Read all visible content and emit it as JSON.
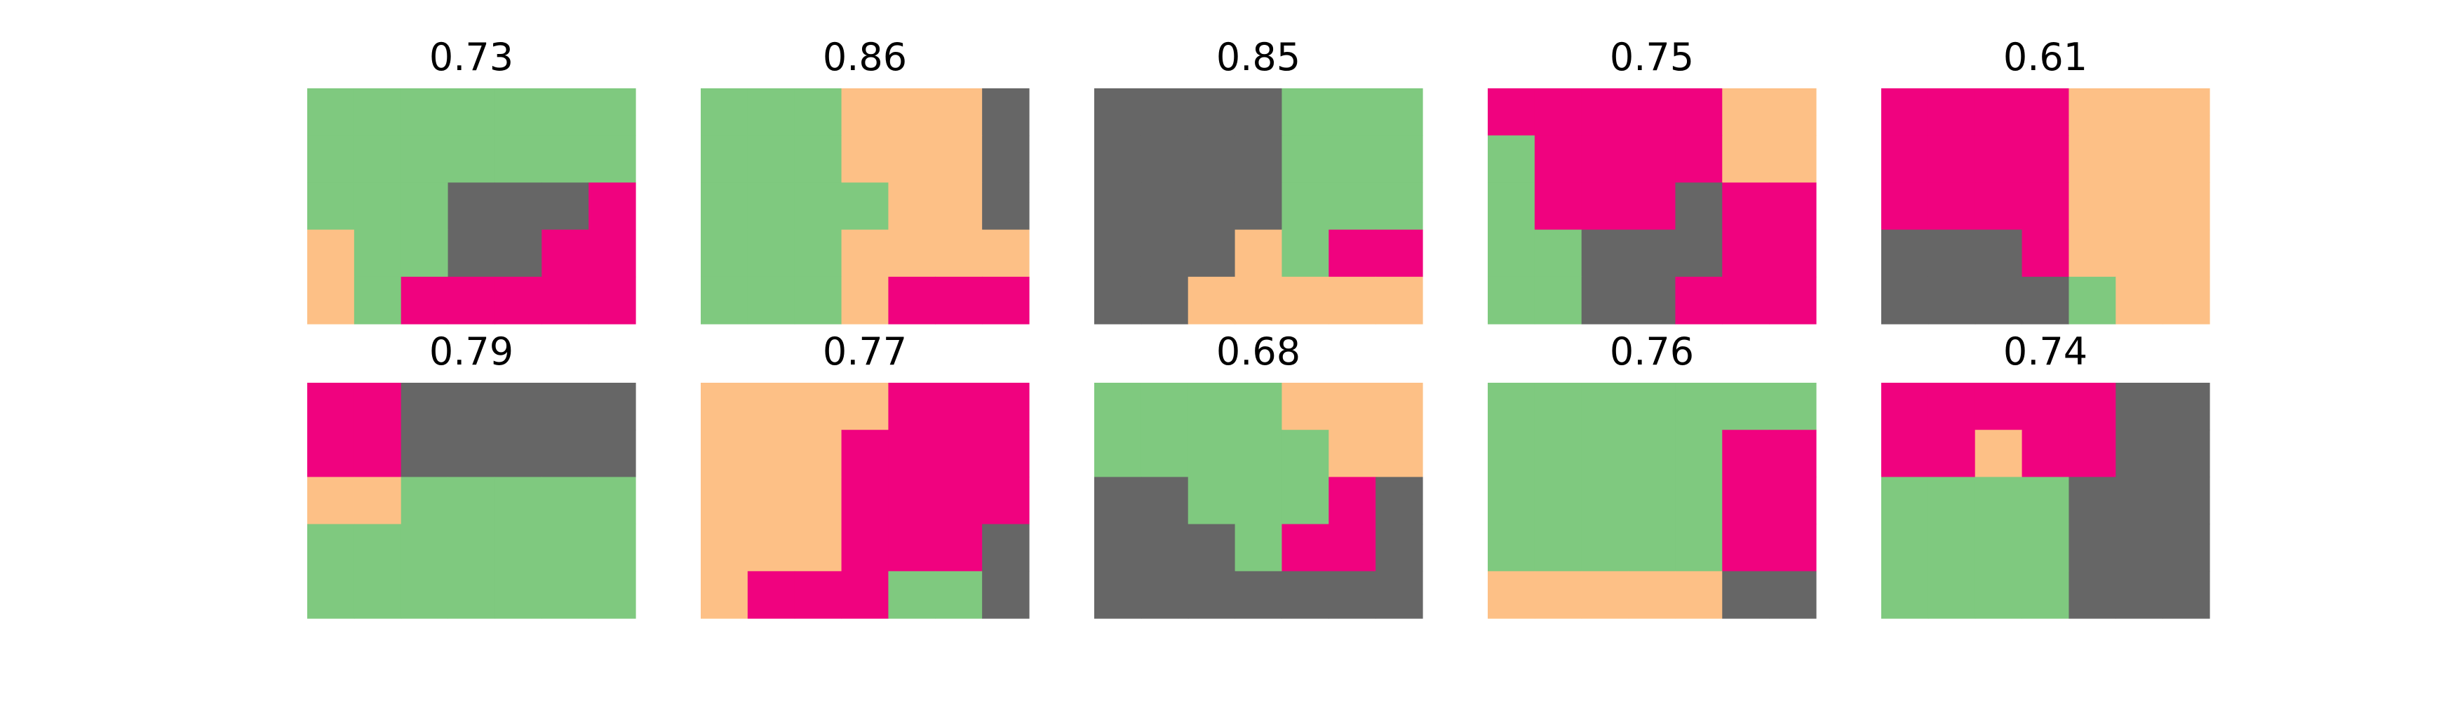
{
  "palette": {
    "G": "#7fc97f",
    "O": "#fdc086",
    "P": "#f0027f",
    "D": "#666666"
  },
  "chart_data": {
    "type": "heatmap",
    "grid": {
      "rows": 2,
      "cols": 5
    },
    "cell_shape": {
      "rows": 5,
      "cols": 7
    },
    "panels": [
      {
        "title": "0.73",
        "cells": [
          "GGGGGGG",
          "GGGGGGG",
          "GGGDDDP",
          "OGGDDPP",
          "OGPPPPP"
        ]
      },
      {
        "title": "0.86",
        "cells": [
          "GGGOOOD",
          "GGGOOOD",
          "GGGGOOD",
          "GGGOOOO",
          "GGGOPPP"
        ]
      },
      {
        "title": "0.85",
        "cells": [
          "DDDDGGG",
          "DDDDGGG",
          "DDDDGGG",
          "DDDOGPP",
          "DDOOOOO"
        ]
      },
      {
        "title": "0.75",
        "cells": [
          "PPPPPOO",
          "GPPPPOO",
          "GPPPDPP",
          "GGDDDPP",
          "GGDDPPP"
        ]
      },
      {
        "title": "0.61",
        "cells": [
          "PPPPOOO",
          "PPPPOOO",
          "PPPPOOO",
          "DDDPOOO",
          "DDDDGOO"
        ]
      },
      {
        "title": "0.79",
        "cells": [
          "PPDDDDD",
          "PPDDDDD",
          "OOGGGGG",
          "GGGGGGG",
          "GGGGGGG"
        ]
      },
      {
        "title": "0.77",
        "cells": [
          "OOOOPPP",
          "OOOPPPP",
          "OOOPPPP",
          "OOOPPPD",
          "OPPPGGD"
        ]
      },
      {
        "title": "0.68",
        "cells": [
          "GGGGOOO",
          "GGGGGOO",
          "DDGGGPD",
          "DDDGPPD",
          "DDDDDDD"
        ]
      },
      {
        "title": "0.76",
        "cells": [
          "GGGGGGG",
          "GGGGGPP",
          "GGGGGPP",
          "GGGGGPP",
          "OOOOODD"
        ]
      },
      {
        "title": "0.74",
        "cells": [
          "PPPPPDD",
          "PPOPPDD",
          "GGGGDDD",
          "GGGGDDD",
          "GGGGDDD"
        ]
      }
    ]
  }
}
